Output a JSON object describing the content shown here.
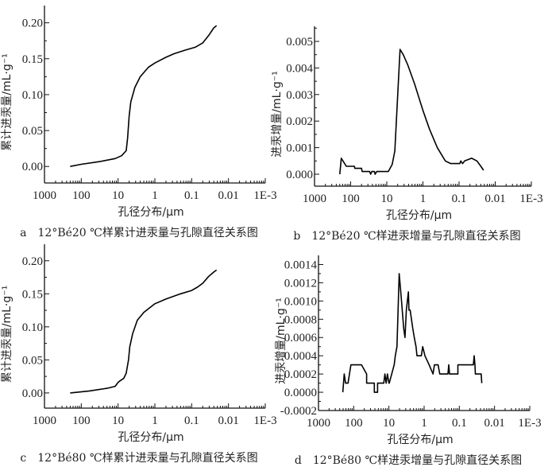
{
  "chart_data": [
    {
      "id": "a",
      "type": "line",
      "caption": "a　12°Bé20 ℃样累计进汞量与孔隙直径关系图",
      "xlabel": "孔径分布/μm",
      "ylabel": "累计进汞量/mL·g⁻¹",
      "xscale": "log-reversed",
      "xlim": [
        1000,
        0.001
      ],
      "xticks": [
        {
          "v": 1000,
          "label": "1000"
        },
        {
          "v": 100,
          "label": "100"
        },
        {
          "v": 10,
          "label": "10"
        },
        {
          "v": 1,
          "label": "1"
        },
        {
          "v": 0.1,
          "label": "0.1"
        },
        {
          "v": 0.01,
          "label": "0.01"
        },
        {
          "v": 0.001,
          "label": "1E-3"
        }
      ],
      "ylim": [
        -0.023,
        0.224
      ],
      "yticks": [
        {
          "v": 0,
          "label": "0.00"
        },
        {
          "v": 0.05,
          "label": "0.05"
        },
        {
          "v": 0.1,
          "label": "0.10"
        },
        {
          "v": 0.15,
          "label": "0.15"
        },
        {
          "v": 0.2,
          "label": "0.20"
        }
      ],
      "points": [
        [
          200,
          0
        ],
        [
          100,
          0.003
        ],
        [
          30,
          0.007
        ],
        [
          12,
          0.011
        ],
        [
          8,
          0.015
        ],
        [
          6,
          0.022
        ],
        [
          5.5,
          0.04
        ],
        [
          5,
          0.07
        ],
        [
          4.5,
          0.09
        ],
        [
          3.5,
          0.11
        ],
        [
          2.5,
          0.125
        ],
        [
          1.5,
          0.138
        ],
        [
          1,
          0.144
        ],
        [
          0.5,
          0.152
        ],
        [
          0.3,
          0.157
        ],
        [
          0.15,
          0.162
        ],
        [
          0.08,
          0.166
        ],
        [
          0.05,
          0.172
        ],
        [
          0.035,
          0.182
        ],
        [
          0.025,
          0.193
        ],
        [
          0.021,
          0.196
        ]
      ]
    },
    {
      "id": "b",
      "type": "line",
      "caption": "b　12°Bé20 ℃样进汞增量与孔隙直径关系图",
      "xlabel": "孔径分布/μm",
      "ylabel": "进汞增量/mL·g⁻¹",
      "xscale": "log-reversed",
      "xlim": [
        1000,
        0.001
      ],
      "xticks": [
        {
          "v": 1000,
          "label": "1000"
        },
        {
          "v": 100,
          "label": "100"
        },
        {
          "v": 10,
          "label": "10"
        },
        {
          "v": 1,
          "label": "1"
        },
        {
          "v": 0.1,
          "label": "0.1"
        },
        {
          "v": 0.01,
          "label": "0.01"
        },
        {
          "v": 0.001,
          "label": "1E-3"
        }
      ],
      "ylim": [
        -0.00045,
        0.00557
      ],
      "yticks": [
        {
          "v": 0,
          "label": "0.000"
        },
        {
          "v": 0.001,
          "label": "0.001"
        },
        {
          "v": 0.002,
          "label": "0.002"
        },
        {
          "v": 0.003,
          "label": "0.003"
        },
        {
          "v": 0.004,
          "label": "0.004"
        },
        {
          "v": 0.005,
          "label": "0.005"
        }
      ],
      "points": [
        [
          200,
          0
        ],
        [
          182,
          0.0006
        ],
        [
          132,
          0.0003
        ],
        [
          79,
          0.0003
        ],
        [
          77,
          0.00022
        ],
        [
          50,
          0.00022
        ],
        [
          48,
          0.0001
        ],
        [
          30,
          0.0001
        ],
        [
          28,
          0
        ],
        [
          26,
          0.0001
        ],
        [
          22,
          0.0001
        ],
        [
          21,
          0
        ],
        [
          19,
          0.0001
        ],
        [
          9.1,
          0.0001
        ],
        [
          7.1,
          0.00037
        ],
        [
          6.0,
          0.00087
        ],
        [
          4.3,
          0.0047
        ],
        [
          3.5,
          0.0045
        ],
        [
          2.6,
          0.0041
        ],
        [
          1.7,
          0.0034
        ],
        [
          1.0,
          0.0024
        ],
        [
          0.66,
          0.0017
        ],
        [
          0.4,
          0.001
        ],
        [
          0.24,
          0.0005
        ],
        [
          0.17,
          0.0004
        ],
        [
          0.095,
          0.0004
        ],
        [
          0.09,
          0.0005
        ],
        [
          0.08,
          0.0004
        ],
        [
          0.07,
          0.0005
        ],
        [
          0.045,
          0.0006
        ],
        [
          0.032,
          0.0005
        ],
        [
          0.025,
          0.0003
        ],
        [
          0.021,
          0.00015
        ]
      ]
    },
    {
      "id": "c",
      "type": "line",
      "caption": "c　12°Bé80 ℃样累计进汞量与孔隙直径关系图",
      "xlabel": "孔径分布/μm",
      "ylabel": "累计进汞量/mL·g⁻¹",
      "xscale": "log-reversed",
      "xlim": [
        1000,
        0.001
      ],
      "xticks": [
        {
          "v": 1000,
          "label": "1000"
        },
        {
          "v": 100,
          "label": "100"
        },
        {
          "v": 10,
          "label": "10"
        },
        {
          "v": 1,
          "label": "1"
        },
        {
          "v": 0.1,
          "label": "0.1"
        },
        {
          "v": 0.01,
          "label": "0.01"
        },
        {
          "v": 0.001,
          "label": "1E-3"
        }
      ],
      "ylim": [
        -0.023,
        0.225
      ],
      "yticks": [
        {
          "v": 0,
          "label": "0.00"
        },
        {
          "v": 0.05,
          "label": "0.05"
        },
        {
          "v": 0.1,
          "label": "0.10"
        },
        {
          "v": 0.15,
          "label": "0.15"
        },
        {
          "v": 0.2,
          "label": "0.20"
        }
      ],
      "points": [
        [
          200,
          0
        ],
        [
          60,
          0.003
        ],
        [
          20,
          0.007
        ],
        [
          12,
          0.01
        ],
        [
          10,
          0.016
        ],
        [
          9,
          0.018
        ],
        [
          7,
          0.022
        ],
        [
          6,
          0.03
        ],
        [
          5.2,
          0.05
        ],
        [
          4.8,
          0.07
        ],
        [
          4,
          0.09
        ],
        [
          3,
          0.11
        ],
        [
          2,
          0.122
        ],
        [
          1.3,
          0.13
        ],
        [
          1,
          0.135
        ],
        [
          0.5,
          0.142
        ],
        [
          0.2,
          0.15
        ],
        [
          0.1,
          0.155
        ],
        [
          0.07,
          0.16
        ],
        [
          0.05,
          0.166
        ],
        [
          0.035,
          0.176
        ],
        [
          0.025,
          0.183
        ],
        [
          0.021,
          0.186
        ]
      ]
    },
    {
      "id": "d",
      "type": "line",
      "caption": "d　12°Bé80 ℃样进汞增量与孔隙直径关系图",
      "xlabel": "孔径分布/μm",
      "ylabel": "进汞增量/mL·g⁻¹",
      "xscale": "log-reversed",
      "xlim": [
        1000,
        0.001
      ],
      "xticks": [
        {
          "v": 1000,
          "label": "1000"
        },
        {
          "v": 100,
          "label": "100"
        },
        {
          "v": 10,
          "label": "10"
        },
        {
          "v": 1,
          "label": "1"
        },
        {
          "v": 0.1,
          "label": "0.1"
        },
        {
          "v": 0.01,
          "label": "0.01"
        },
        {
          "v": 0.001,
          "label": "1E-3"
        }
      ],
      "ylim": [
        -0.0002,
        0.0015
      ],
      "yticks": [
        {
          "v": -0.0002,
          "label": "-0.0002"
        },
        {
          "v": 0,
          "label": "0.0000"
        },
        {
          "v": 0.0002,
          "label": "0.0002"
        },
        {
          "v": 0.0004,
          "label": "0.0004"
        },
        {
          "v": 0.0006,
          "label": "0.0006"
        },
        {
          "v": 0.0008,
          "label": "0.0008"
        },
        {
          "v": 0.001,
          "label": "0.0010"
        },
        {
          "v": 0.0012,
          "label": "0.0012"
        },
        {
          "v": 0.0014,
          "label": "0.0014"
        }
      ],
      "points": [
        [
          204,
          0
        ],
        [
          186,
          0.0002
        ],
        [
          170,
          0.0001
        ],
        [
          145,
          0.0001
        ],
        [
          132,
          0.0002
        ],
        [
          120,
          0.0003
        ],
        [
          60,
          0.0003
        ],
        [
          43,
          0.0002
        ],
        [
          43,
          0.0001
        ],
        [
          26,
          0.0001
        ],
        [
          26,
          0
        ],
        [
          21,
          0
        ],
        [
          21,
          0.0001
        ],
        [
          14,
          0.0001
        ],
        [
          13,
          0.0002
        ],
        [
          12,
          0.0001
        ],
        [
          11,
          0.0002
        ],
        [
          10,
          0.0001
        ],
        [
          9.8,
          0.0001
        ],
        [
          7.1,
          0.0003
        ],
        [
          6.6,
          0.0004
        ],
        [
          5.9,
          0.0005
        ],
        [
          5.1,
          0.0013
        ],
        [
          4.6,
          0.0011
        ],
        [
          3.8,
          0.0007
        ],
        [
          3.5,
          0.0006
        ],
        [
          3.2,
          0.0009
        ],
        [
          2.8,
          0.0011
        ],
        [
          2.7,
          0.0009
        ],
        [
          2.5,
          0.0009
        ],
        [
          2.1,
          0.0007
        ],
        [
          1.9,
          0.0006
        ],
        [
          1.7,
          0.0005
        ],
        [
          1.6,
          0.0004
        ],
        [
          1.2,
          0.0004
        ],
        [
          1.1,
          0.0005
        ],
        [
          0.95,
          0.0004
        ],
        [
          0.72,
          0.0003
        ],
        [
          0.56,
          0.0002
        ],
        [
          0.51,
          0.0003
        ],
        [
          0.4,
          0.0003
        ],
        [
          0.36,
          0.0002
        ],
        [
          0.21,
          0.0002
        ],
        [
          0.2,
          0.0003
        ],
        [
          0.19,
          0.0002
        ],
        [
          0.11,
          0.0002
        ],
        [
          0.11,
          0.0003
        ],
        [
          0.04,
          0.0003
        ],
        [
          0.038,
          0.0004
        ],
        [
          0.036,
          0.0003
        ],
        [
          0.035,
          0.0002
        ],
        [
          0.024,
          0.0002
        ],
        [
          0.023,
          0.0001
        ]
      ]
    }
  ]
}
